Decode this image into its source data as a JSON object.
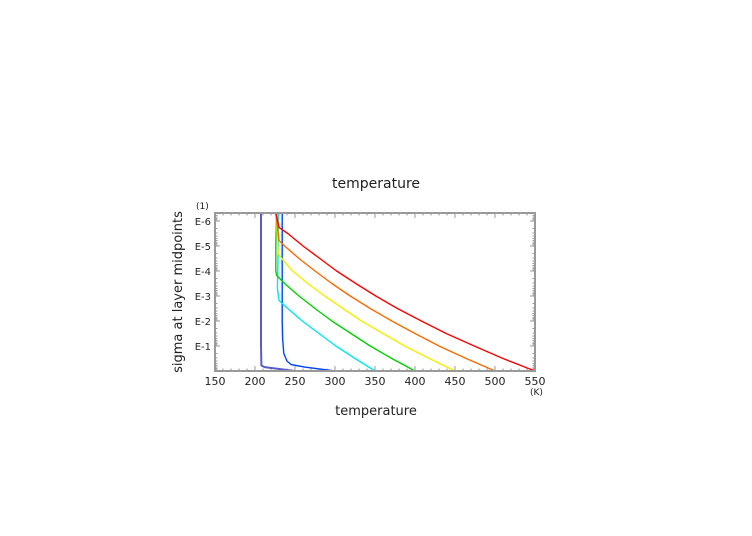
{
  "chart_data": {
    "type": "line",
    "title": "temperature",
    "xlabel": "temperature",
    "xunit": "(K)",
    "ylabel": "sigma at layer midpoints",
    "yunit": "(1)",
    "xlim": [
      150,
      550
    ],
    "ylim": [
      1,
      4.8e-07
    ],
    "yscale": "log",
    "y_reversed": true,
    "grid": false,
    "xticks": [
      150,
      200,
      250,
      300,
      350,
      400,
      450,
      500,
      550
    ],
    "xtick_labels": [
      "150",
      "200",
      "250",
      "300",
      "350",
      "400",
      "450",
      "500",
      "550"
    ],
    "yticks": [
      0.1,
      0.01,
      0.001,
      0.0001,
      1e-05,
      1e-06
    ],
    "ytick_labels": [
      "E-1",
      "E-2",
      "E-3",
      "E-4",
      "E-5",
      "E-6"
    ],
    "series": [
      {
        "color": "#5a5ac8",
        "points": [
          [
            250,
            1
          ],
          [
            212,
            0.7
          ],
          [
            208,
            0.6
          ],
          [
            207.5,
            0.1
          ],
          [
            207.5,
            0.001
          ],
          [
            207.5,
            4.8e-07
          ]
        ]
      },
      {
        "color": "#0044ff",
        "points": [
          [
            300,
            1
          ],
          [
            262,
            0.7
          ],
          [
            245,
            0.55
          ],
          [
            240,
            0.4
          ],
          [
            236,
            0.2
          ],
          [
            234.5,
            0.05
          ],
          [
            234,
            0.01
          ],
          [
            234,
            0.0001
          ],
          [
            234,
            4.8e-07
          ]
        ]
      },
      {
        "color": "#00e8e8",
        "points": [
          [
            350,
            1
          ],
          [
            325,
            0.316
          ],
          [
            301,
            0.1
          ],
          [
            280,
            0.0316
          ],
          [
            259,
            0.01
          ],
          [
            241,
            0.00316
          ],
          [
            230,
            0.0015
          ],
          [
            228,
            0.0005
          ],
          [
            229,
            1e-05
          ],
          [
            229,
            4.8e-07
          ]
        ]
      },
      {
        "color": "#00d000",
        "points": [
          [
            400,
            1
          ],
          [
            371,
            0.316
          ],
          [
            344,
            0.1
          ],
          [
            320,
            0.0316
          ],
          [
            296,
            0.01
          ],
          [
            275,
            0.00316
          ],
          [
            255,
            0.001
          ],
          [
            237,
            0.000316
          ],
          [
            227,
            0.00015
          ],
          [
            226,
            0.0001
          ],
          [
            226,
            1e-05
          ],
          [
            227,
            4.8e-07
          ]
        ]
      },
      {
        "color": "#f0f000",
        "points": [
          [
            450,
            1
          ],
          [
            418,
            0.316
          ],
          [
            387,
            0.1
          ],
          [
            360,
            0.0316
          ],
          [
            333,
            0.01
          ],
          [
            310,
            0.00316
          ],
          [
            287,
            0.001
          ],
          [
            266,
            0.000316
          ],
          [
            247,
            0.0001
          ],
          [
            236,
            4e-05
          ],
          [
            229,
            2e-05
          ],
          [
            227,
            1e-06
          ],
          [
            227,
            4.8e-07
          ]
        ]
      },
      {
        "color": "#ff6a00",
        "points": [
          [
            500,
            1
          ],
          [
            464,
            0.316
          ],
          [
            430,
            0.1
          ],
          [
            400,
            0.0316
          ],
          [
            371,
            0.01
          ],
          [
            344,
            0.00316
          ],
          [
            319,
            0.001
          ],
          [
            296,
            0.000316
          ],
          [
            275,
            0.0001
          ],
          [
            255,
            3.16e-05
          ],
          [
            237,
            1e-05
          ],
          [
            230,
            6e-06
          ],
          [
            226,
            4.8e-07
          ]
        ]
      },
      {
        "color": "#ff0000",
        "points": [
          [
            550,
            1
          ],
          [
            510,
            0.316
          ],
          [
            474,
            0.1
          ],
          [
            439,
            0.0316
          ],
          [
            408,
            0.01
          ],
          [
            378,
            0.00316
          ],
          [
            351,
            0.001
          ],
          [
            326,
            0.000316
          ],
          [
            302,
            0.0001
          ],
          [
            281,
            3.16e-05
          ],
          [
            260,
            1e-05
          ],
          [
            241,
            3.16e-06
          ],
          [
            230,
            1.8e-06
          ],
          [
            226,
            4.8e-07
          ]
        ]
      }
    ]
  }
}
